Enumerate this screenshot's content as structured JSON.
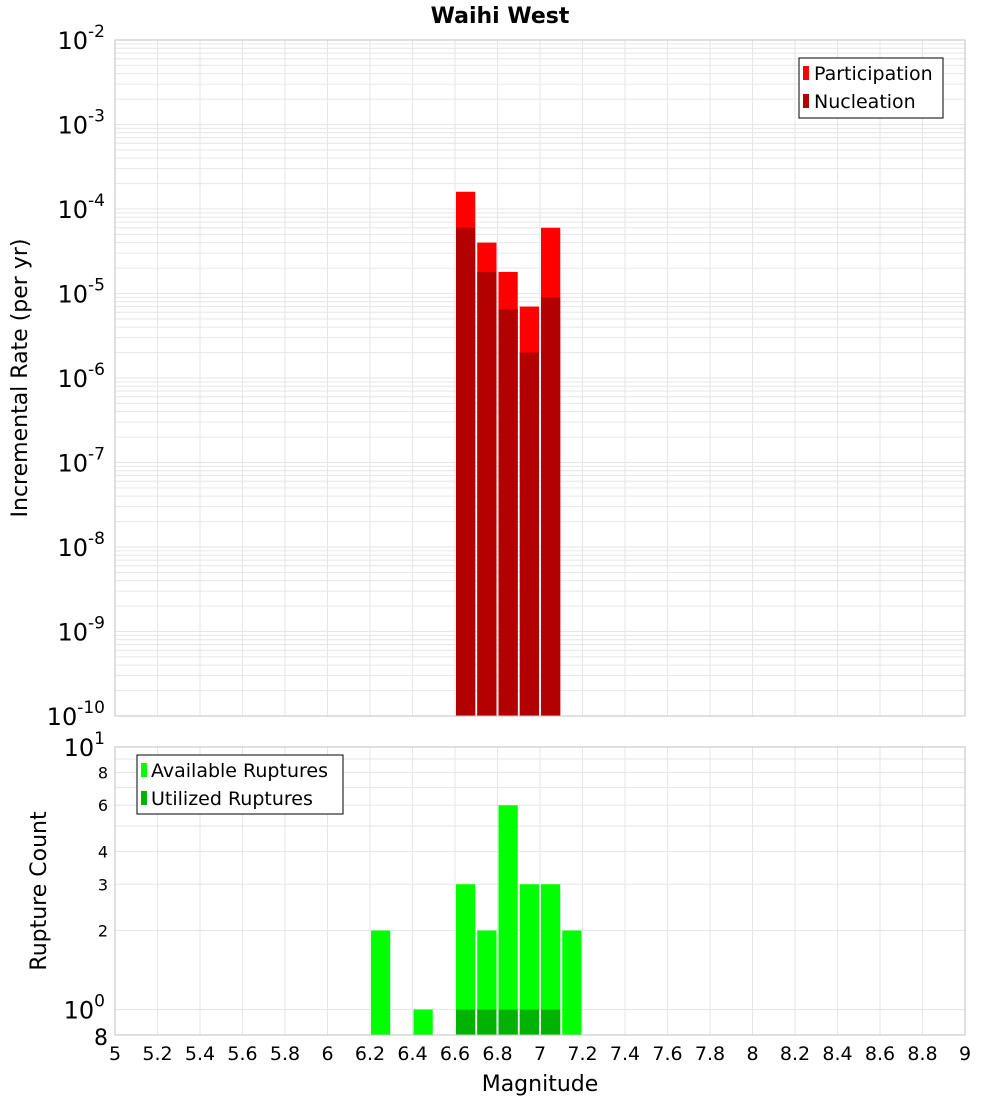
{
  "chart_data": [
    {
      "type": "bar",
      "title": "Waihi West",
      "xlabel": "",
      "ylabel": "Incremental Rate (per yr)",
      "yscale": "log",
      "ylim": [
        1e-10,
        0.01
      ],
      "xlim": [
        5,
        9
      ],
      "y_tick_exponents": [
        -10,
        -9,
        -8,
        -7,
        -6,
        -5,
        -4,
        -3,
        -2
      ],
      "bin_width": 0.1,
      "legend_position": "top-right",
      "grid": true,
      "x": [
        6.65,
        6.75,
        6.85,
        6.95,
        7.05
      ],
      "series": [
        {
          "name": "Participation",
          "color": "#ff0000",
          "values": [
            0.00016,
            4e-05,
            1.8e-05,
            7e-06,
            6e-05
          ]
        },
        {
          "name": "Nucleation",
          "color": "#b30000",
          "values": [
            6e-05,
            1.8e-05,
            6.5e-06,
            2e-06,
            9e-06
          ]
        }
      ]
    },
    {
      "type": "bar",
      "title": "",
      "xlabel": "Magnitude",
      "ylabel": "Rupture Count",
      "yscale": "log",
      "ylim": [
        0.8,
        10
      ],
      "xlim": [
        5,
        9
      ],
      "x_ticks": [
        "5",
        "5.2",
        "5.4",
        "5.6",
        "5.8",
        "6",
        "6.2",
        "6.4",
        "6.6",
        "6.8",
        "7",
        "7.2",
        "7.4",
        "7.6",
        "7.8",
        "8",
        "8.2",
        "8.4",
        "8.6",
        "8.8",
        "9"
      ],
      "y_minor_ticks": [
        {
          "value": 8,
          "label": "8"
        },
        {
          "value": 6,
          "label": "6"
        },
        {
          "value": 4,
          "label": "4"
        },
        {
          "value": 3,
          "label": "3"
        },
        {
          "value": 2,
          "label": "2"
        },
        {
          "value": 0.8,
          "label": "8"
        }
      ],
      "y_decade_ticks": [
        {
          "value": 10,
          "exponent": "1"
        },
        {
          "value": 1,
          "exponent": "0"
        }
      ],
      "bin_width": 0.1,
      "legend_position": "top-left",
      "grid": true,
      "series": [
        {
          "name": "Available Ruptures",
          "color": "#00ff00",
          "x": [
            6.25,
            6.45,
            6.65,
            6.75,
            6.85,
            6.95,
            7.05,
            7.15
          ],
          "values": [
            2,
            1,
            3,
            2,
            6,
            3,
            3,
            2
          ]
        },
        {
          "name": "Utilized Ruptures",
          "color": "#00b300",
          "x": [
            6.65,
            6.75,
            6.85,
            6.95,
            7.05
          ],
          "values": [
            1,
            1,
            1,
            1,
            1
          ]
        }
      ]
    }
  ]
}
